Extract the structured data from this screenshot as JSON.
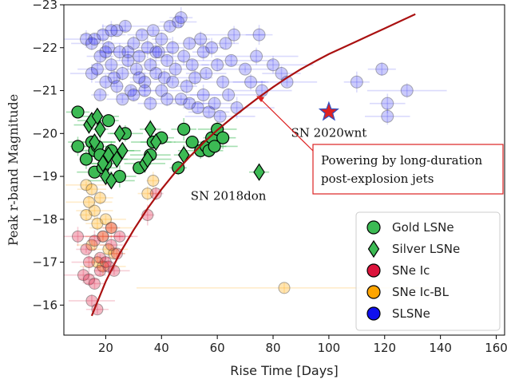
{
  "chart_data": {
    "type": "scatter",
    "xlabel": "Rise Time [Days]",
    "ylabel": "Peak r-band Magnitude",
    "xlim": [
      5,
      163
    ],
    "ylim": [
      -15.3,
      -23
    ],
    "x_ticks": [
      20,
      40,
      60,
      80,
      100,
      120,
      140,
      160
    ],
    "y_ticks": [
      -23,
      -22,
      -21,
      -20,
      -19,
      -18,
      -17,
      -16
    ],
    "legend": {
      "placement": "lower-right"
    },
    "colors": {
      "gold": "#3cba54",
      "silver": "#3cba54",
      "ic": "#dc143c",
      "icbl": "#ffa500",
      "slsne": "#1010ee",
      "curve": "#aa1111",
      "star": "#dd2222",
      "annotation_box": "#dd2222"
    },
    "series": [
      {
        "name": "SLSNe",
        "key": "slsne",
        "marker": "circle",
        "points": [
          [
            13,
            -22.2
          ],
          [
            15,
            -22.1
          ],
          [
            16,
            -22.2
          ],
          [
            17,
            -21.5
          ],
          [
            18,
            -21.8
          ],
          [
            19,
            -22.3
          ],
          [
            20,
            -21.2
          ],
          [
            21,
            -22.0
          ],
          [
            22,
            -21.6
          ],
          [
            23,
            -21.3
          ],
          [
            24,
            -22.4
          ],
          [
            25,
            -21.9
          ],
          [
            26,
            -21.4
          ],
          [
            27,
            -22.5
          ],
          [
            28,
            -21.7
          ],
          [
            29,
            -21.0
          ],
          [
            30,
            -22.1
          ],
          [
            31,
            -21.5
          ],
          [
            32,
            -21.8
          ],
          [
            33,
            -22.3
          ],
          [
            34,
            -21.2
          ],
          [
            35,
            -22.0
          ],
          [
            36,
            -21.6
          ],
          [
            37,
            -22.4
          ],
          [
            38,
            -21.4
          ],
          [
            39,
            -21.9
          ],
          [
            40,
            -22.2
          ],
          [
            41,
            -21.3
          ],
          [
            42,
            -21.7
          ],
          [
            43,
            -22.5
          ],
          [
            44,
            -22.0
          ],
          [
            45,
            -21.5
          ],
          [
            46,
            -22.6
          ],
          [
            47,
            -22.7
          ],
          [
            48,
            -21.8
          ],
          [
            49,
            -21.1
          ],
          [
            50,
            -22.1
          ],
          [
            51,
            -21.6
          ],
          [
            52,
            -21.3
          ],
          [
            54,
            -22.2
          ],
          [
            55,
            -21.9
          ],
          [
            56,
            -21.4
          ],
          [
            58,
            -22.0
          ],
          [
            60,
            -21.6
          ],
          [
            62,
            -21.2
          ],
          [
            63,
            -22.1
          ],
          [
            65,
            -21.7
          ],
          [
            66,
            -22.3
          ],
          [
            70,
            -21.5
          ],
          [
            74,
            -21.8
          ],
          [
            75,
            -22.3
          ],
          [
            80,
            -21.6
          ],
          [
            83,
            -21.4
          ],
          [
            85,
            -21.2
          ],
          [
            110,
            -21.2
          ],
          [
            119,
            -21.5
          ],
          [
            121,
            -20.7
          ],
          [
            121,
            -20.4
          ],
          [
            128,
            -21.0
          ],
          [
            15,
            -21.4
          ],
          [
            18,
            -20.9
          ],
          [
            20,
            -21.9
          ],
          [
            22,
            -22.4
          ],
          [
            24,
            -21.1
          ],
          [
            26,
            -20.8
          ],
          [
            28,
            -21.9
          ],
          [
            30,
            -20.9
          ],
          [
            32,
            -21.3
          ],
          [
            34,
            -21.0
          ],
          [
            36,
            -20.7
          ],
          [
            38,
            -21.9
          ],
          [
            40,
            -21.0
          ],
          [
            42,
            -20.8
          ],
          [
            44,
            -21.2
          ],
          [
            47,
            -20.8
          ],
          [
            50,
            -20.7
          ],
          [
            53,
            -20.6
          ],
          [
            55,
            -20.9
          ],
          [
            57,
            -20.5
          ],
          [
            59,
            -20.7
          ],
          [
            61,
            -20.4
          ],
          [
            64,
            -20.9
          ],
          [
            67,
            -20.6
          ],
          [
            72,
            -21.2
          ],
          [
            76,
            -21.0
          ]
        ]
      },
      {
        "name": "SNe Ic-BL",
        "key": "icbl",
        "marker": "circle",
        "points": [
          [
            13,
            -18.8
          ],
          [
            14,
            -18.4
          ],
          [
            15,
            -18.7
          ],
          [
            16,
            -18.2
          ],
          [
            17,
            -17.9
          ],
          [
            18,
            -18.5
          ],
          [
            19,
            -17.6
          ],
          [
            20,
            -18.0
          ],
          [
            21,
            -17.3
          ],
          [
            22,
            -17.8
          ],
          [
            23,
            -17.2
          ],
          [
            35,
            -18.6
          ],
          [
            37,
            -18.9
          ],
          [
            84,
            -16.4
          ],
          [
            13,
            -18.1
          ],
          [
            15,
            -17.4
          ],
          [
            17,
            -17.0
          ],
          [
            19,
            -16.9
          ]
        ]
      },
      {
        "name": "SNe Ic",
        "key": "ic",
        "marker": "circle",
        "points": [
          [
            10,
            -17.6
          ],
          [
            12,
            -16.7
          ],
          [
            13,
            -17.3
          ],
          [
            14,
            -16.6
          ],
          [
            15,
            -16.1
          ],
          [
            16,
            -17.5
          ],
          [
            17,
            -15.9
          ],
          [
            18,
            -17.1
          ],
          [
            19,
            -17.6
          ],
          [
            20,
            -17.0
          ],
          [
            21,
            -16.9
          ],
          [
            22,
            -17.4
          ],
          [
            23,
            -16.8
          ],
          [
            24,
            -17.2
          ],
          [
            25,
            -17.6
          ],
          [
            35,
            -18.1
          ],
          [
            38,
            -18.6
          ],
          [
            14,
            -17.0
          ],
          [
            16,
            -16.5
          ],
          [
            18,
            -16.8
          ],
          [
            22,
            -17.8
          ]
        ]
      },
      {
        "name": "Gold LSNe",
        "key": "gold",
        "marker": "circle",
        "points": [
          [
            10,
            -20.5
          ],
          [
            10,
            -19.7
          ],
          [
            13,
            -19.4
          ],
          [
            15,
            -19.8
          ],
          [
            16,
            -19.6
          ],
          [
            16,
            -19.1
          ],
          [
            17,
            -19.7
          ],
          [
            18,
            -19.5
          ],
          [
            19,
            -19.2
          ],
          [
            20,
            -19.3
          ],
          [
            21,
            -20.3
          ],
          [
            22,
            -19.6
          ],
          [
            25,
            -19.0
          ],
          [
            27,
            -20.0
          ],
          [
            32,
            -19.2
          ],
          [
            36,
            -19.5
          ],
          [
            37,
            -19.8
          ],
          [
            40,
            -19.9
          ],
          [
            46,
            -19.2
          ],
          [
            48,
            -20.1
          ],
          [
            51,
            -19.8
          ],
          [
            54,
            -19.6
          ],
          [
            56,
            -19.7
          ],
          [
            57,
            -19.6
          ],
          [
            58,
            -19.9
          ],
          [
            59,
            -19.7
          ],
          [
            60,
            -20.1
          ],
          [
            62,
            -19.9
          ]
        ]
      },
      {
        "name": "Silver LSNe",
        "key": "silver",
        "marker": "diamond",
        "points": [
          [
            14,
            -20.2
          ],
          [
            15,
            -20.3
          ],
          [
            16,
            -19.8
          ],
          [
            17,
            -20.4
          ],
          [
            18,
            -20.1
          ],
          [
            19,
            -19.3
          ],
          [
            20,
            -19.0
          ],
          [
            21,
            -19.5
          ],
          [
            22,
            -18.9
          ],
          [
            24,
            -19.4
          ],
          [
            25,
            -20.0
          ],
          [
            26,
            -19.6
          ],
          [
            34,
            -19.3
          ],
          [
            35,
            -19.4
          ],
          [
            36,
            -20.1
          ],
          [
            38,
            -19.8
          ],
          [
            48,
            -19.5
          ],
          [
            75,
            -19.1
          ]
        ]
      }
    ],
    "highlight": {
      "label": "SN 2020wnt",
      "x": 100,
      "y": -20.5,
      "marker": "star"
    },
    "curve_points": [
      [
        15,
        -15.75
      ],
      [
        20,
        -16.55
      ],
      [
        25,
        -17.2
      ],
      [
        30,
        -17.75
      ],
      [
        35,
        -18.25
      ],
      [
        40,
        -18.7
      ],
      [
        45,
        -19.1
      ],
      [
        50,
        -19.45
      ],
      [
        55,
        -19.78
      ],
      [
        60,
        -20.08
      ],
      [
        65,
        -20.35
      ],
      [
        70,
        -20.6
      ],
      [
        75,
        -20.85
      ],
      [
        80,
        -21.08
      ],
      [
        85,
        -21.3
      ],
      [
        90,
        -21.5
      ],
      [
        95,
        -21.68
      ],
      [
        100,
        -21.85
      ],
      [
        105,
        -22.0
      ],
      [
        110,
        -22.15
      ],
      [
        115,
        -22.3
      ],
      [
        120,
        -22.45
      ],
      [
        125,
        -22.6
      ],
      [
        131,
        -22.78
      ]
    ],
    "annotations": [
      {
        "text": "SN 2020wnt",
        "x": 100,
        "y": -19.92
      },
      {
        "text": "SN 2018don",
        "x": 64,
        "y": -18.45
      }
    ],
    "annotation_box": {
      "lines": [
        "Powering by long-duration",
        "post-explosion jets"
      ],
      "arrow_to": [
        74,
        -20.88
      ]
    }
  }
}
